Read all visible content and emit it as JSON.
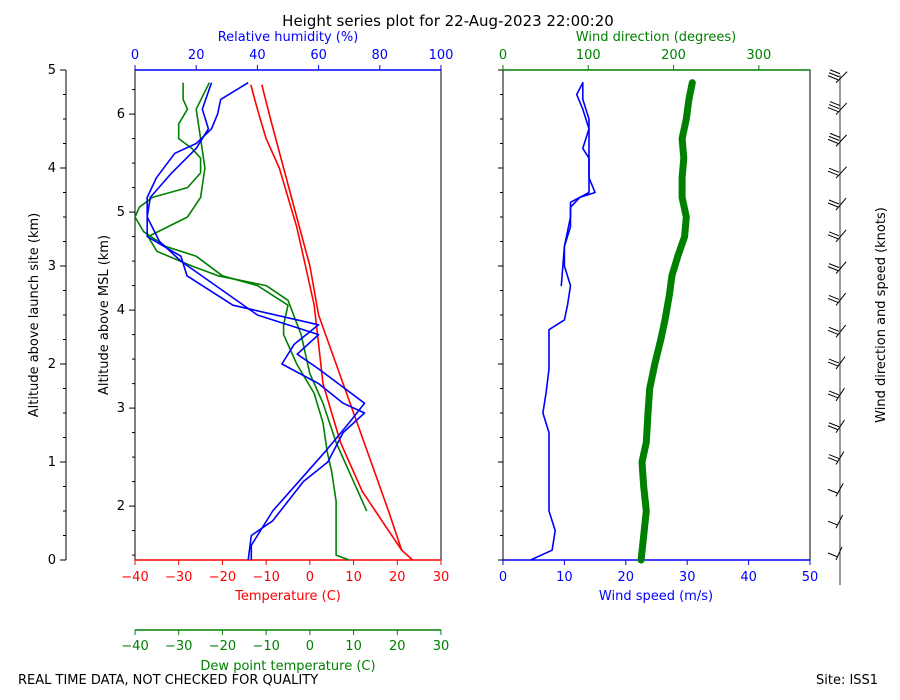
{
  "title": "Height series plot for 22-Aug-2023 22:00:20",
  "footer": {
    "left": "REAL TIME DATA, NOT CHECKED FOR QUALITY",
    "right": "Site: ISS1"
  },
  "colors": {
    "temperature": "#ff0000",
    "dewpoint": "#008000",
    "rh": "#0000ff",
    "wind_speed": "#0000ff",
    "wind_dir": "#008000",
    "barb": "#000000"
  },
  "chart_data": [
    {
      "type": "line",
      "name": "thermo_panel",
      "axes": {
        "left_outer": {
          "label": "Altitude above launch site (km)",
          "range": [
            0,
            5
          ],
          "ticks": [
            0,
            1,
            2,
            3,
            4,
            5
          ]
        },
        "left_inner": {
          "label": "Altitude above MSL (km)",
          "range": [
            1.45,
            6.45
          ],
          "ticks": [
            2,
            3,
            4,
            5,
            6
          ]
        },
        "top": {
          "label": "Relative humidity (%)",
          "range": [
            0,
            100
          ],
          "ticks": [
            0,
            20,
            40,
            60,
            80,
            100
          ],
          "color": "#0000ff"
        },
        "bottom": {
          "label": "Temperature (C)",
          "range": [
            -40,
            30
          ],
          "ticks": [
            -40,
            -30,
            -20,
            -10,
            0,
            10,
            20,
            30
          ],
          "color": "#ff0000"
        },
        "bottom2": {
          "label": "Dew point temperature (C)",
          "range": [
            -40,
            30
          ],
          "ticks": [
            -40,
            -30,
            -20,
            -10,
            0,
            10,
            20,
            30
          ],
          "color": "#008000"
        }
      },
      "series": [
        {
          "name": "Temperature",
          "x_unit": "C",
          "color": "#ff0000",
          "points": [
            [
              23.5,
              0
            ],
            [
              21,
              0.1
            ],
            [
              18,
              0.5
            ],
            [
              14,
              1
            ],
            [
              10,
              1.5
            ],
            [
              6,
              2
            ],
            [
              2,
              2.5
            ],
            [
              0,
              3
            ],
            [
              -3,
              3.5
            ],
            [
              -6,
              4
            ],
            [
              -9,
              4.5
            ],
            [
              -11,
              4.85
            ]
          ]
        },
        {
          "name": "Temperature",
          "x_unit": "C",
          "color": "#ff0000",
          "points": [
            [
              -13.5,
              4.85
            ],
            [
              -12,
              4.6
            ],
            [
              -10,
              4.3
            ],
            [
              -7,
              4
            ],
            [
              -5,
              3.7
            ],
            [
              -3,
              3.4
            ],
            [
              -1,
              3
            ],
            [
              1,
              2.6
            ],
            [
              2,
              2.2
            ],
            [
              3,
              1.8
            ],
            [
              5,
              1.5
            ],
            [
              7,
              1.2
            ],
            [
              9,
              1
            ],
            [
              12,
              0.7
            ],
            [
              15,
              0.5
            ],
            [
              18,
              0.3
            ],
            [
              21,
              0.1
            ]
          ]
        },
        {
          "name": "Dew point",
          "x_unit": "C",
          "color": "#008000",
          "points": [
            [
              9,
              0
            ],
            [
              6,
              0.05
            ],
            [
              6,
              0.3
            ],
            [
              6,
              0.6
            ],
            [
              5,
              0.9
            ],
            [
              4,
              1.1
            ],
            [
              3,
              1.4
            ],
            [
              1,
              1.7
            ],
            [
              -3,
              2
            ],
            [
              -6,
              2.3
            ],
            [
              -6,
              2.4
            ],
            [
              -5,
              2.6
            ],
            [
              -12,
              2.8
            ],
            [
              -20,
              2.9
            ],
            [
              -26,
              3.1
            ],
            [
              -33,
              3.2
            ],
            [
              -38,
              3.35
            ],
            [
              -40,
              3.5
            ],
            [
              -39,
              3.6
            ],
            [
              -36,
              3.7
            ],
            [
              -28,
              3.8
            ],
            [
              -25,
              3.95
            ],
            [
              -25,
              4.1
            ],
            [
              -27,
              4.2
            ],
            [
              -30,
              4.3
            ],
            [
              -30,
              4.45
            ],
            [
              -28,
              4.6
            ],
            [
              -29,
              4.7
            ],
            [
              -29,
              4.87
            ]
          ]
        },
        {
          "name": "Dew point",
          "x_unit": "C",
          "color": "#008000",
          "points": [
            [
              -23,
              4.87
            ],
            [
              -26,
              4.6
            ],
            [
              -25,
              4.3
            ],
            [
              -24,
              4
            ],
            [
              -25,
              3.7
            ],
            [
              -28,
              3.5
            ],
            [
              -37,
              3.3
            ],
            [
              -35,
              3.15
            ],
            [
              -27,
              3
            ],
            [
              -21,
              2.9
            ],
            [
              -10,
              2.8
            ],
            [
              -5,
              2.65
            ],
            [
              -2,
              2.3
            ],
            [
              0,
              1.9
            ],
            [
              3,
              1.6
            ],
            [
              6,
              1.2
            ],
            [
              9,
              0.9
            ],
            [
              13,
              0.5
            ]
          ]
        },
        {
          "name": "Relative humidity",
          "x_unit": "%",
          "color": "#0000ff",
          "points": [
            [
              37,
              4.87
            ],
            [
              28,
              4.7
            ],
            [
              27,
              4.55
            ],
            [
              25,
              4.4
            ],
            [
              20,
              4.25
            ],
            [
              13,
              4.15
            ],
            [
              7,
              3.9
            ],
            [
              4,
              3.7
            ],
            [
              4,
              3.3
            ],
            [
              15,
              3.1
            ],
            [
              17,
              2.9
            ],
            [
              32,
              2.6
            ],
            [
              60,
              2.4
            ],
            [
              52,
              2.2
            ],
            [
              48,
              2
            ],
            [
              60,
              1.8
            ],
            [
              68,
              1.6
            ],
            [
              75,
              1.5
            ],
            [
              68,
              1.3
            ],
            [
              63,
              1
            ],
            [
              55,
              0.8
            ],
            [
              50,
              0.6
            ],
            [
              45,
              0.4
            ],
            [
              38,
              0.25
            ],
            [
              37,
              0
            ]
          ]
        },
        {
          "name": "Relative humidity",
          "x_unit": "%",
          "color": "#0000ff",
          "points": [
            [
              25,
              4.87
            ],
            [
              22,
              4.6
            ],
            [
              24,
              4.4
            ],
            [
              20,
              4.2
            ],
            [
              12,
              3.95
            ],
            [
              5,
              3.7
            ],
            [
              4,
              3.5
            ],
            [
              8,
              3.25
            ],
            [
              15,
              3.05
            ],
            [
              40,
              2.5
            ],
            [
              60,
              2.3
            ],
            [
              53,
              2.1
            ],
            [
              60,
              1.95
            ],
            [
              75,
              1.6
            ],
            [
              70,
              1.4
            ],
            [
              62,
              1.1
            ],
            [
              45,
              0.5
            ],
            [
              38,
              0.15
            ],
            [
              38,
              0
            ]
          ]
        }
      ]
    },
    {
      "type": "line",
      "name": "wind_panel",
      "axes": {
        "bottom": {
          "label": "Wind speed (m/s)",
          "range": [
            0,
            50
          ],
          "ticks": [
            0,
            10,
            20,
            30,
            40,
            50
          ],
          "color": "#0000ff"
        },
        "top": {
          "label": "Wind direction (degrees)",
          "range": [
            0,
            360
          ],
          "ticks": [
            0,
            100,
            200,
            300
          ],
          "color": "#008000"
        },
        "right": {
          "label": "Wind direction and speed (knots)"
        }
      },
      "series": [
        {
          "name": "Wind speed",
          "x_unit": "m/s",
          "color": "#0000ff",
          "points": [
            [
              4.5,
              0
            ],
            [
              8,
              0.1
            ],
            [
              8.5,
              0.3
            ],
            [
              7.5,
              0.5
            ],
            [
              7.5,
              0.8
            ],
            [
              7.5,
              1
            ],
            [
              7.5,
              1.3
            ],
            [
              6.5,
              1.5
            ],
            [
              7,
              1.7
            ],
            [
              7.5,
              1.95
            ],
            [
              7.5,
              2.2
            ],
            [
              7.5,
              2.35
            ],
            [
              10,
              2.45
            ],
            [
              10.5,
              2.6
            ],
            [
              11,
              2.8
            ],
            [
              10,
              3
            ],
            [
              10,
              3.2
            ],
            [
              11,
              3.4
            ],
            [
              11,
              3.6
            ],
            [
              12.5,
              3.7
            ],
            [
              15,
              3.75
            ],
            [
              14,
              3.9
            ],
            [
              14,
              4.1
            ],
            [
              13,
              4.2
            ],
            [
              14,
              4.4
            ],
            [
              13,
              4.6
            ],
            [
              12,
              4.75
            ],
            [
              13,
              4.87
            ]
          ]
        },
        {
          "name": "Wind speed",
          "x_unit": "m/s",
          "color": "#0000ff",
          "points": [
            [
              9.5,
              2.8
            ],
            [
              10,
              3.2
            ],
            [
              11,
              3.5
            ],
            [
              11,
              3.65
            ],
            [
              14,
              3.75
            ],
            [
              14,
              4.0
            ],
            [
              14,
              4.3
            ],
            [
              14,
              4.5
            ],
            [
              13,
              4.7
            ],
            [
              13,
              4.87
            ]
          ]
        },
        {
          "name": "Wind direction",
          "x_unit": "degrees",
          "color": "#008000",
          "points": [
            [
              162,
              0
            ],
            [
              165,
              0.25
            ],
            [
              168,
              0.5
            ],
            [
              165,
              0.75
            ],
            [
              163,
              1
            ],
            [
              168,
              1.2
            ],
            [
              170,
              1.5
            ],
            [
              172,
              1.75
            ],
            [
              178,
              2
            ],
            [
              185,
              2.25
            ],
            [
              190,
              2.45
            ],
            [
              195,
              2.7
            ],
            [
              198,
              2.9
            ],
            [
              205,
              3.1
            ],
            [
              213,
              3.3
            ],
            [
              215,
              3.5
            ],
            [
              210,
              3.7
            ],
            [
              210,
              3.9
            ],
            [
              212,
              4.1
            ],
            [
              210,
              4.3
            ],
            [
              215,
              4.5
            ],
            [
              218,
              4.7
            ],
            [
              222,
              4.87
            ]
          ]
        }
      ],
      "barbs": {
        "direction_deg": [
          180,
          185,
          190,
          195,
          200,
          200,
          205,
          210,
          210,
          215,
          215,
          215,
          220,
          220,
          220,
          225
        ],
        "speed_kt": [
          12,
          12,
          14,
          15,
          16,
          18,
          18,
          20,
          20,
          22,
          22,
          24,
          24,
          25,
          26,
          26
        ]
      }
    }
  ]
}
